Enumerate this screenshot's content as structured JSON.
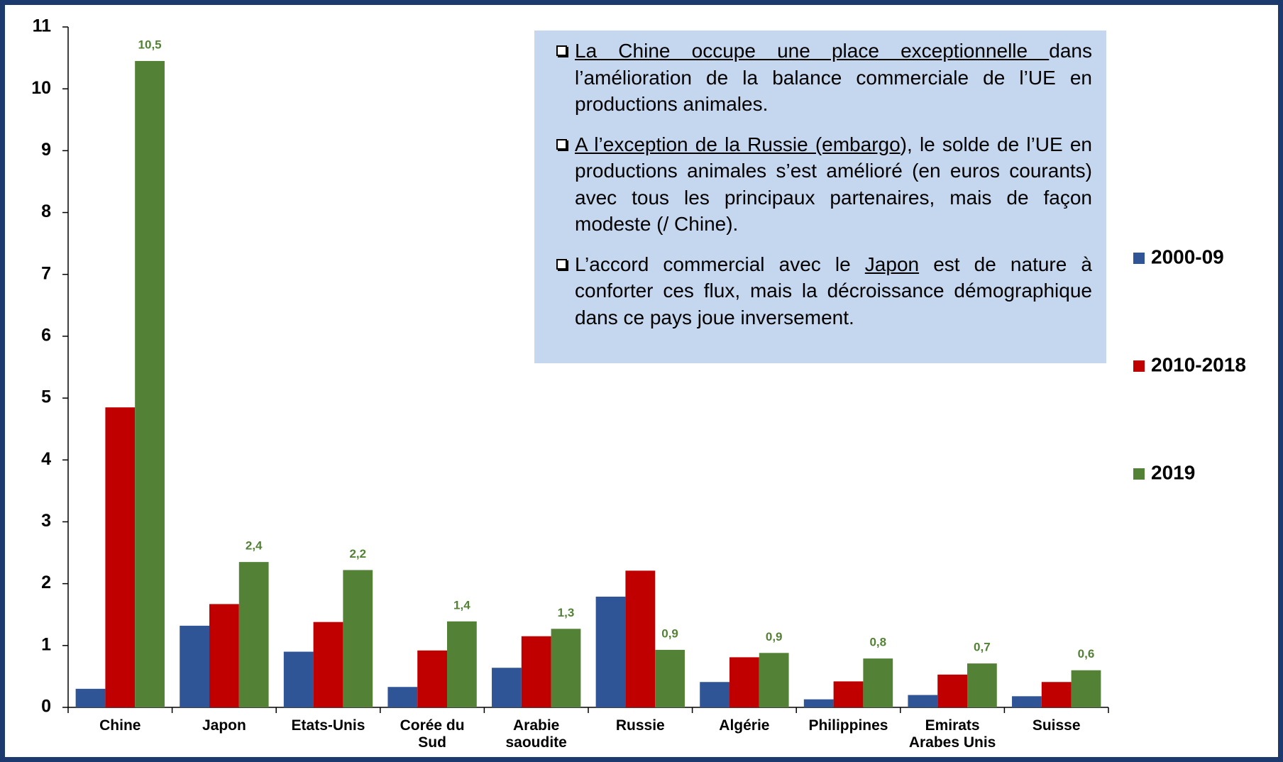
{
  "chart_data": {
    "type": "bar",
    "categories": [
      "Chine",
      "Japon",
      "Etats-Unis",
      "Corée du Sud",
      "Arabie saoudite",
      "Russie",
      "Algérie",
      "Philippines",
      "Emirats Arabes Unis",
      "Suisse"
    ],
    "series": [
      {
        "name": "2000-09",
        "color": "#2f5597",
        "values": [
          0.3,
          1.32,
          0.9,
          0.33,
          0.64,
          1.79,
          0.41,
          0.13,
          0.2,
          0.18
        ]
      },
      {
        "name": "2010-2018",
        "color": "#c00000",
        "values": [
          4.85,
          1.67,
          1.38,
          0.92,
          1.15,
          2.21,
          0.81,
          0.42,
          0.53,
          0.41
        ]
      },
      {
        "name": "2019",
        "color": "#538135",
        "values": [
          10.45,
          2.35,
          2.22,
          1.39,
          1.27,
          0.93,
          0.88,
          0.79,
          0.71,
          0.6
        ],
        "value_labels": [
          "10,5",
          "2,4",
          "2,2",
          "1,4",
          "1,3",
          "0,9",
          "0,9",
          "0,8",
          "0,7",
          "0,6"
        ]
      }
    ],
    "ylim": [
      0,
      11
    ],
    "yticks": [
      0,
      1,
      2,
      3,
      4,
      5,
      6,
      7,
      8,
      9,
      10,
      11
    ],
    "grid": false,
    "legend": "right",
    "notes": [
      [
        {
          "text": "La Chine occupe une place exceptionnelle ",
          "underline": true
        },
        {
          "text": "dans l’amélioration de la balance commerciale de l’UE en productions animales."
        }
      ],
      [
        {
          "text": "A l’exception de la Russie (embargo",
          "underline": true
        },
        {
          "text": "), le solde de l’UE en productions animales s’est amélioré (en euros courants) avec tous les principaux partenaires, mais de façon modeste (/ Chine)."
        }
      ],
      [
        {
          "text": "L’accord commercial avec le "
        },
        {
          "text": "Japon",
          "underline": true
        },
        {
          "text": " est de nature à conforter ces flux, mais la décroissance démographique dans ce pays joue inversement."
        }
      ]
    ]
  }
}
